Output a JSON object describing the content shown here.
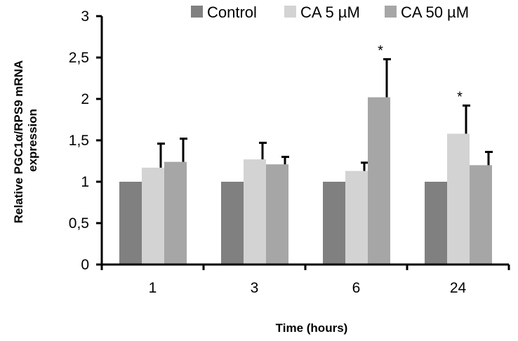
{
  "chart_data": {
    "type": "bar",
    "title": "",
    "xlabel": "Time (hours)",
    "ylabel": "Relative PGC1α/RPS9 mRNA",
    "ylabel_line2": "expression",
    "categories": [
      "1",
      "3",
      "6",
      "24"
    ],
    "ylim": [
      0,
      3
    ],
    "yticks": [
      0,
      0.5,
      1,
      1.5,
      2,
      2.5,
      3
    ],
    "ytick_labels": [
      "0",
      "0,5",
      "1",
      "1,5",
      "2",
      "2,5",
      "3"
    ],
    "grid": false,
    "legend_position": "top",
    "series": [
      {
        "name": "Control",
        "color": "#808080",
        "values": [
          1,
          1,
          1,
          1
        ],
        "errors": [
          0,
          0,
          0,
          0
        ],
        "significant": [
          false,
          false,
          false,
          false
        ]
      },
      {
        "name": "CA 5 µM",
        "color": "#d3d3d3",
        "values": [
          1.17,
          1.27,
          1.13,
          1.58
        ],
        "errors": [
          0.29,
          0.2,
          0.1,
          0.34
        ],
        "significant": [
          false,
          false,
          false,
          true
        ]
      },
      {
        "name": "CA 50 µM",
        "color": "#a6a6a6",
        "values": [
          1.24,
          1.21,
          2.02,
          1.2
        ],
        "errors": [
          0.28,
          0.09,
          0.46,
          0.16
        ],
        "significant": [
          false,
          false,
          true,
          false
        ]
      }
    ],
    "significance_marker": "*"
  }
}
